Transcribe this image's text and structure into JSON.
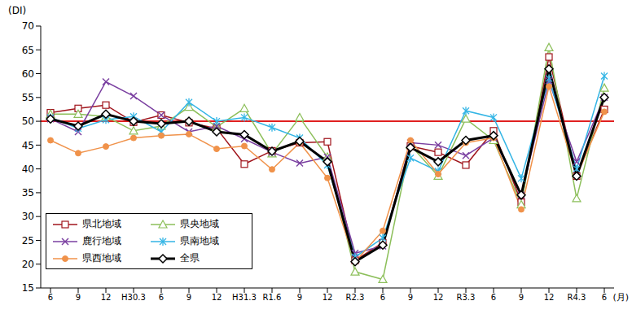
{
  "chart_data": {
    "type": "line",
    "y_label": "(DI)",
    "x_label": "(月)",
    "categories": [
      "6",
      "9",
      "12",
      "H30.3",
      "6",
      "9",
      "12",
      "H31.3",
      "R1.6",
      "9",
      "12",
      "R2.3",
      "6",
      "9",
      "12",
      "R3.3",
      "6",
      "9",
      "12",
      "R4.3",
      "6"
    ],
    "ylim": [
      15,
      70
    ],
    "yticks": [
      15,
      20,
      25,
      30,
      35,
      40,
      45,
      50,
      55,
      60,
      65,
      70
    ],
    "grid": false,
    "legend": "lower left",
    "reference_value": 50,
    "reference_color": "#e02020",
    "series": [
      {
        "name": "県北地域",
        "color": "#a0141c",
        "marker": "square",
        "values": [
          51.8,
          52.7,
          53.4,
          49.8,
          51.3,
          49.7,
          48.5,
          41,
          43.8,
          45.5,
          45.7,
          20.8,
          24.5,
          44.8,
          43.5,
          40.8,
          48,
          33,
          63.5,
          38.5,
          52.5
        ]
      },
      {
        "name": "県央地域",
        "color": "#8cbf5a",
        "marker": "triangle",
        "values": [
          51.5,
          51.5,
          51,
          48,
          49,
          53,
          48.8,
          52.7,
          43.2,
          50.8,
          42.5,
          18.4,
          16.8,
          45,
          38.5,
          50.5,
          46,
          32.5,
          65.5,
          33.8,
          57
        ]
      },
      {
        "name": "鹿行地域",
        "color": "#7a3fa0",
        "marker": "x",
        "values": [
          50.5,
          47.8,
          58.3,
          55.3,
          51.3,
          47.8,
          49,
          46.3,
          43.5,
          41.2,
          42.5,
          22.3,
          23.8,
          45.5,
          45,
          42.8,
          46.5,
          34.5,
          58.5,
          41.5,
          55
        ]
      },
      {
        "name": "県南地域",
        "color": "#33b5e5",
        "marker": "star",
        "values": [
          50.8,
          48.5,
          50.3,
          51,
          47.8,
          54,
          50,
          50.8,
          48.7,
          46.5,
          40.8,
          21.5,
          25.5,
          42.3,
          39.5,
          52.2,
          50.8,
          38,
          59,
          40,
          59.5
        ]
      },
      {
        "name": "県西地域",
        "color": "#f0924a",
        "marker": "circle",
        "values": [
          46,
          43.3,
          44.7,
          46.5,
          47,
          47.3,
          44.2,
          44.8,
          39.9,
          45.5,
          38.1,
          20.5,
          27,
          46,
          38.9,
          45.5,
          46.5,
          31.5,
          57.3,
          38.5,
          52
        ]
      },
      {
        "name": "全県",
        "color": "#000000",
        "marker": "diamond",
        "values": [
          50.5,
          49,
          51.5,
          50,
          49.5,
          50,
          47.8,
          47.2,
          43.7,
          45.8,
          41.5,
          20.5,
          24,
          44.5,
          41.5,
          46,
          47,
          34.5,
          61,
          38.5,
          55
        ]
      }
    ]
  }
}
